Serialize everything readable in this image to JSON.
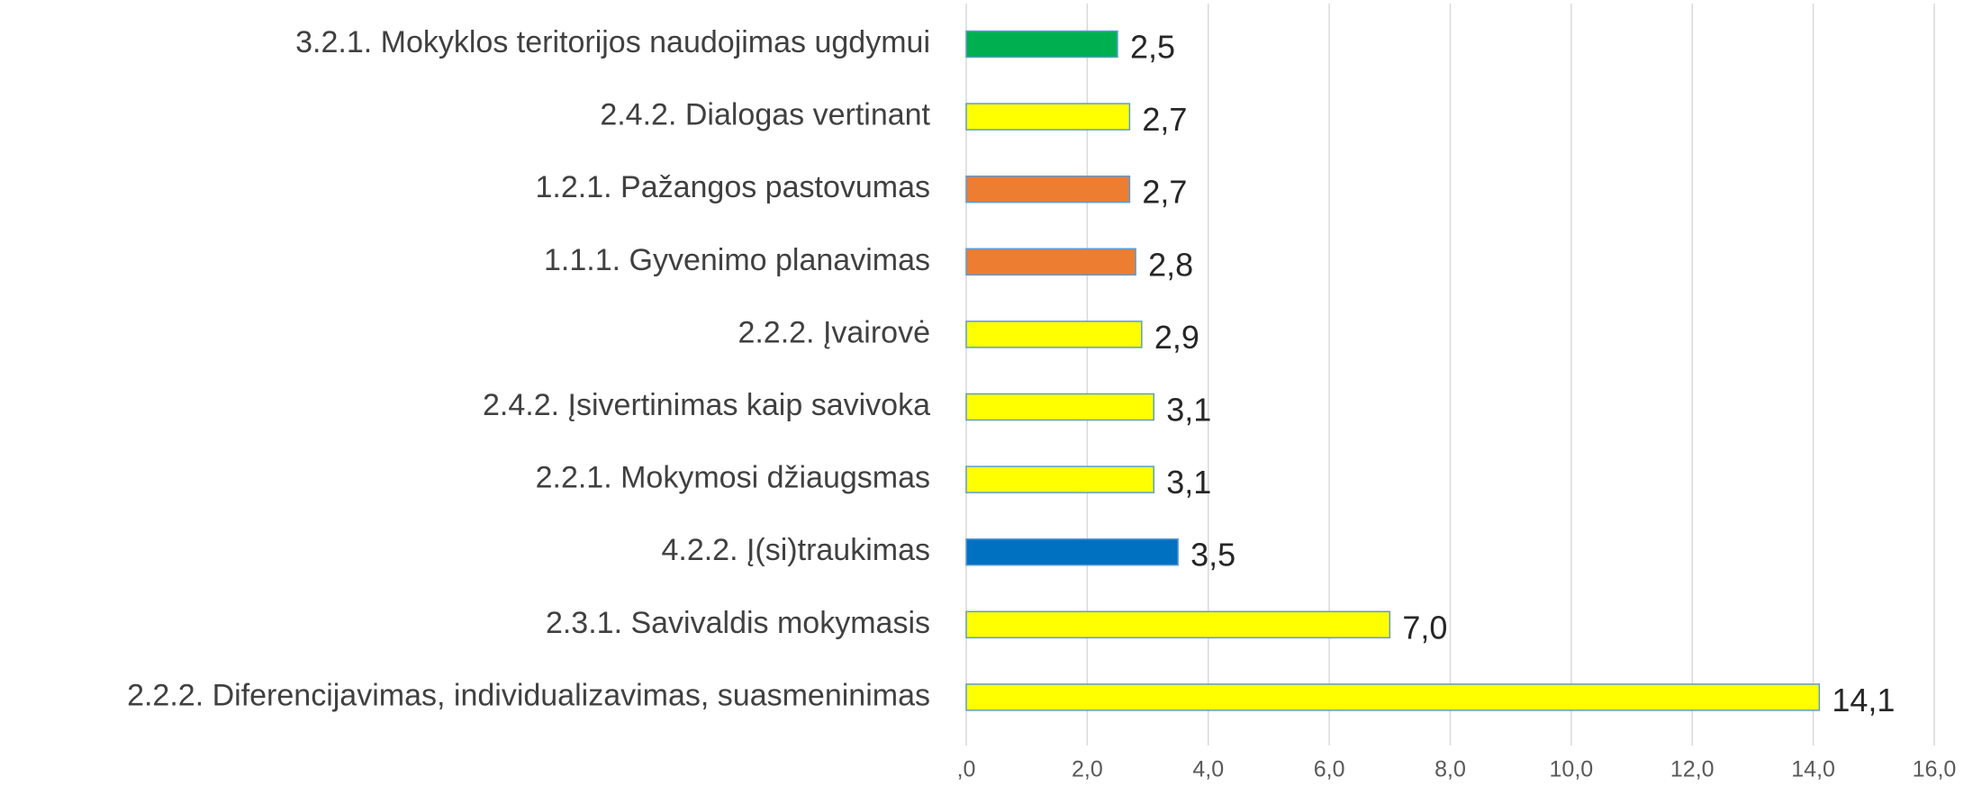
{
  "chart_data": {
    "type": "bar",
    "orientation": "horizontal",
    "categories": [
      "3.2.1. Mokyklos teritorijos naudojimas ugdymui",
      "2.4.2. Dialogas vertinant",
      "1.2.1. Pažangos pastovumas",
      "1.1.1. Gyvenimo planavimas",
      "2.2.2. Įvairovė",
      "2.4.2. Įsivertinimas kaip savivoka",
      "2.2.1. Mokymosi džiaugsmas",
      "4.2.2. Į(si)traukimas",
      "2.3.1. Savivaldis mokymasis",
      "2.2.2. Diferencijavimas, individualizavimas, suasmeninimas"
    ],
    "values": [
      2.5,
      2.7,
      2.7,
      2.8,
      2.9,
      3.1,
      3.1,
      3.5,
      7.0,
      14.1
    ],
    "value_labels": [
      "2,5",
      "2,7",
      "2,7",
      "2,8",
      "2,9",
      "3,1",
      "3,1",
      "3,5",
      "7,0",
      "14,1"
    ],
    "colors": [
      "#00b050",
      "#ffff00",
      "#ed7d31",
      "#ed7d31",
      "#ffff00",
      "#ffff00",
      "#ffff00",
      "#0070c0",
      "#ffff00",
      "#ffff00"
    ],
    "xlim": [
      0,
      16
    ],
    "xticks": [
      {
        "value": 0,
        "label": ",0"
      },
      {
        "value": 2,
        "label": "2,0"
      },
      {
        "value": 4,
        "label": "4,0"
      },
      {
        "value": 6,
        "label": "6,0"
      },
      {
        "value": 8,
        "label": "8,0"
      },
      {
        "value": 10,
        "label": "10,0"
      },
      {
        "value": 12,
        "label": "12,0"
      },
      {
        "value": 14,
        "label": "14,0"
      },
      {
        "value": 16,
        "label": "16,0"
      }
    ],
    "grid": true
  }
}
